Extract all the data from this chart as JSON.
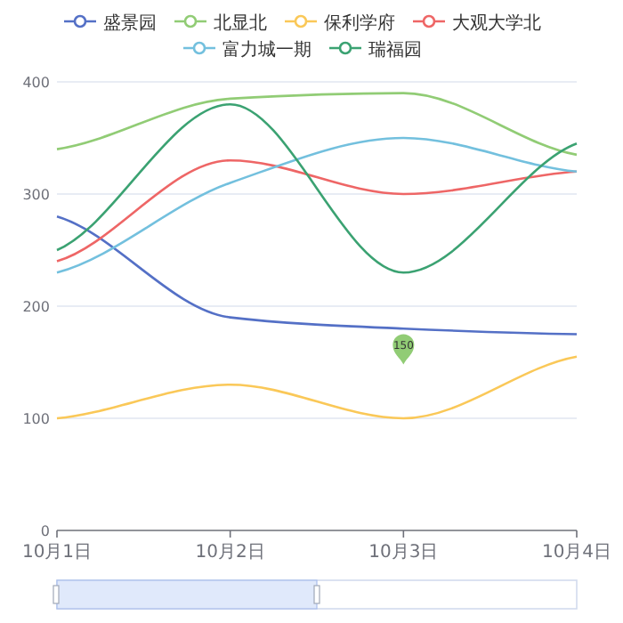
{
  "chart_data": {
    "type": "line",
    "categories": [
      "10月1日",
      "10月2日",
      "10月3日",
      "10月4日"
    ],
    "series": [
      {
        "name": "盛景园",
        "color": "#5470c6",
        "values": [
          280,
          190,
          180,
          175
        ]
      },
      {
        "name": "北显北",
        "color": "#91cc75",
        "values": [
          340,
          385,
          390,
          335
        ]
      },
      {
        "name": "保利学府",
        "color": "#fac858",
        "values": [
          100,
          130,
          100,
          155
        ]
      },
      {
        "name": "大观大学北",
        "color": "#ee6666",
        "values": [
          240,
          330,
          300,
          320
        ]
      },
      {
        "name": "富力城一期",
        "color": "#73c0de",
        "values": [
          230,
          310,
          350,
          320
        ]
      },
      {
        "name": "瑞福园",
        "color": "#3ba272",
        "values": [
          250,
          380,
          230,
          345
        ]
      }
    ],
    "ylim": [
      0,
      400
    ],
    "yticks": [
      0,
      100,
      200,
      300,
      400
    ],
    "grid": "y",
    "legend": "top",
    "annotations": [
      "150"
    ]
  }
}
